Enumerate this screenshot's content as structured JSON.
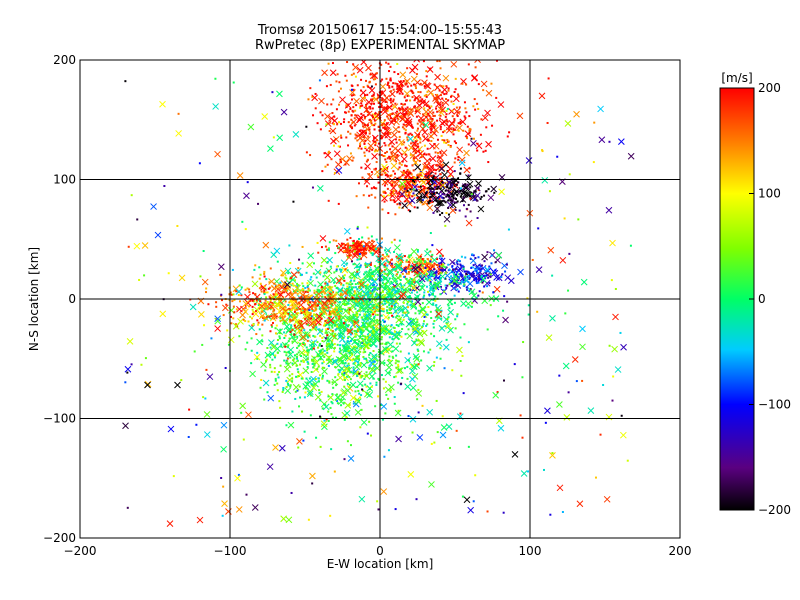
{
  "chart_data": {
    "type": "scatter",
    "title": "Tromsø 20150617 15:54:00–15:55:43",
    "subtitle": "RwPretec (8p) EXPERIMENTAL SKYMAP",
    "xlabel": "E-W location [km]",
    "ylabel": "N-S location [km]",
    "xlim": [
      -200,
      200
    ],
    "ylim": [
      -200,
      200
    ],
    "xticks": [
      -200,
      -100,
      0,
      100,
      200
    ],
    "yticks": [
      -200,
      -100,
      0,
      100,
      200
    ],
    "grid": true,
    "colorbar": {
      "label": "[m/s]",
      "min": -200,
      "max": 200,
      "ticks": [
        200,
        100,
        0,
        -100,
        -200
      ],
      "colormap": "rainbow (black-purple-blue-cyan-green-yellow-orange-red)"
    },
    "marker_types": [
      "dot",
      "x"
    ],
    "clusters": [
      {
        "x": 20,
        "y": 95,
        "spread_x": 14,
        "spread_y": 10,
        "velocity": 180,
        "note": "red/black cluster near north grid line"
      },
      {
        "x": 45,
        "y": 90,
        "spread_x": 15,
        "spread_y": 8,
        "velocity": -190,
        "note": "black points east of cluster"
      },
      {
        "x": -15,
        "y": 42,
        "spread_x": 10,
        "spread_y": 4,
        "velocity": 185
      },
      {
        "x": 20,
        "y": 28,
        "spread_x": 12,
        "spread_y": 5,
        "velocity": 160
      },
      {
        "x": 55,
        "y": 20,
        "spread_x": 15,
        "spread_y": 8,
        "velocity": -110
      },
      {
        "x": 0,
        "y": 5,
        "spread_x": 30,
        "spread_y": 18,
        "velocity": 0
      },
      {
        "x": -25,
        "y": -40,
        "spread_x": 28,
        "spread_y": 28,
        "velocity": 20
      },
      {
        "x": -60,
        "y": -5,
        "spread_x": 25,
        "spread_y": 12,
        "velocity": 150
      },
      {
        "x": 15,
        "y": 150,
        "spread_x": 25,
        "spread_y": 25,
        "velocity": 190
      }
    ],
    "isolated_points": [
      {
        "x": -120,
        "y": -185,
        "velocity": 190,
        "marker": "x"
      },
      {
        "x": -140,
        "y": -188,
        "velocity": 190,
        "marker": "x"
      },
      {
        "x": 120,
        "y": -158,
        "velocity": 190,
        "marker": "x"
      },
      {
        "x": 108,
        "y": 170,
        "velocity": 190,
        "marker": "x"
      },
      {
        "x": -135,
        "y": -72,
        "velocity": -200,
        "marker": "x"
      },
      {
        "x": -155,
        "y": -72,
        "velocity": -200,
        "marker": "x"
      },
      {
        "x": 58,
        "y": -168,
        "velocity": -200,
        "marker": "x"
      },
      {
        "x": 90,
        "y": -130,
        "velocity": -200,
        "marker": "x"
      },
      {
        "x": -145,
        "y": 163,
        "velocity": 100,
        "marker": "x"
      },
      {
        "x": -95,
        "y": -150,
        "velocity": 100,
        "marker": "x"
      },
      {
        "x": 135,
        "y": -25,
        "velocity": -50,
        "marker": "x"
      },
      {
        "x": 135,
        "y": -40,
        "velocity": 30,
        "marker": "x"
      },
      {
        "x": 157,
        "y": -15,
        "velocity": 190,
        "marker": "x"
      },
      {
        "x": 155,
        "y": -85,
        "velocity": -160,
        "marker": "dot"
      }
    ]
  }
}
